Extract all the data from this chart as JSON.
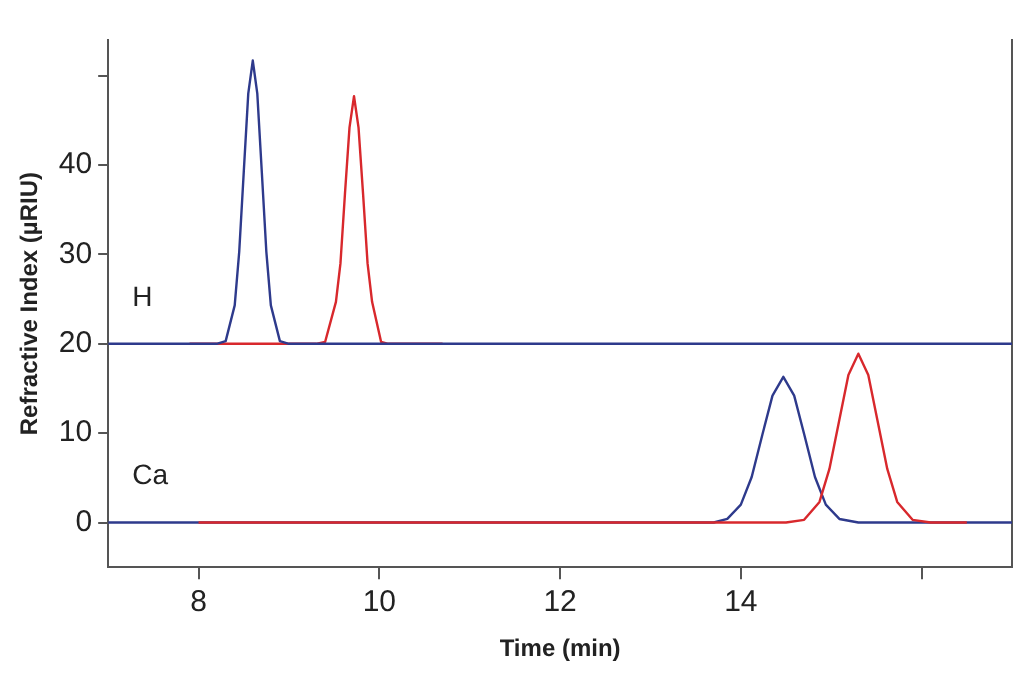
{
  "chart_data": {
    "type": "line",
    "xlabel": "Time (min)",
    "ylabel": "Refractive Index (µRIU)",
    "xlim": [
      7,
      17
    ],
    "xticks": [
      8,
      10,
      12,
      14,
      {
        "value": 16,
        "label": null
      }
    ],
    "ylim": [
      -5,
      54
    ],
    "yticks": [
      0,
      10,
      20,
      30,
      40,
      {
        "value": 50,
        "label": null
      }
    ],
    "grid": false,
    "legend": false,
    "marker": "none",
    "line_style": "solid",
    "annotations": [
      "H",
      "Ca"
    ],
    "series": [
      {
        "color": "#2e3a8c",
        "x": [
          7,
          8.2,
          8.3,
          8.4,
          8.45,
          8.5,
          8.55,
          8.6,
          8.65,
          8.7,
          8.75,
          8.8,
          8.9,
          9.0,
          17
        ],
        "values": [
          20,
          20,
          20.3,
          24.3,
          30.3,
          39.2,
          48.0,
          51.7,
          48.0,
          39.2,
          30.3,
          24.3,
          20.3,
          20,
          20
        ]
      },
      {
        "color": "#d8282c",
        "x": [
          7.9,
          9.3,
          9.4,
          9.52,
          9.57,
          9.62,
          9.67,
          9.72,
          9.77,
          9.82,
          9.87,
          9.92,
          10.02,
          10.1,
          10.7
        ],
        "values": [
          20,
          20,
          20.2,
          24.7,
          29.0,
          36.8,
          44.2,
          47.7,
          44.2,
          36.8,
          29.0,
          24.7,
          20.2,
          20,
          20
        ]
      },
      {
        "color": "#d8282c",
        "x": [
          8,
          14.5,
          14.7,
          14.87,
          14.98,
          15.09,
          15.19,
          15.3,
          15.41,
          15.51,
          15.62,
          15.73,
          15.9,
          16.1,
          16.5
        ],
        "values": [
          0,
          0,
          0.3,
          2.3,
          6.0,
          11.5,
          16.5,
          18.9,
          16.5,
          11.5,
          6.0,
          2.3,
          0.3,
          0,
          0
        ]
      },
      {
        "color": "#2e3a8c",
        "x": [
          7,
          13.7,
          13.85,
          14.0,
          14.12,
          14.24,
          14.35,
          14.47,
          14.59,
          14.7,
          14.82,
          14.94,
          15.09,
          15.3,
          17
        ],
        "values": [
          0,
          0,
          0.4,
          2.0,
          5.1,
          9.9,
          14.2,
          16.3,
          14.2,
          9.9,
          5.1,
          2.0,
          0.4,
          0,
          0
        ]
      }
    ]
  }
}
